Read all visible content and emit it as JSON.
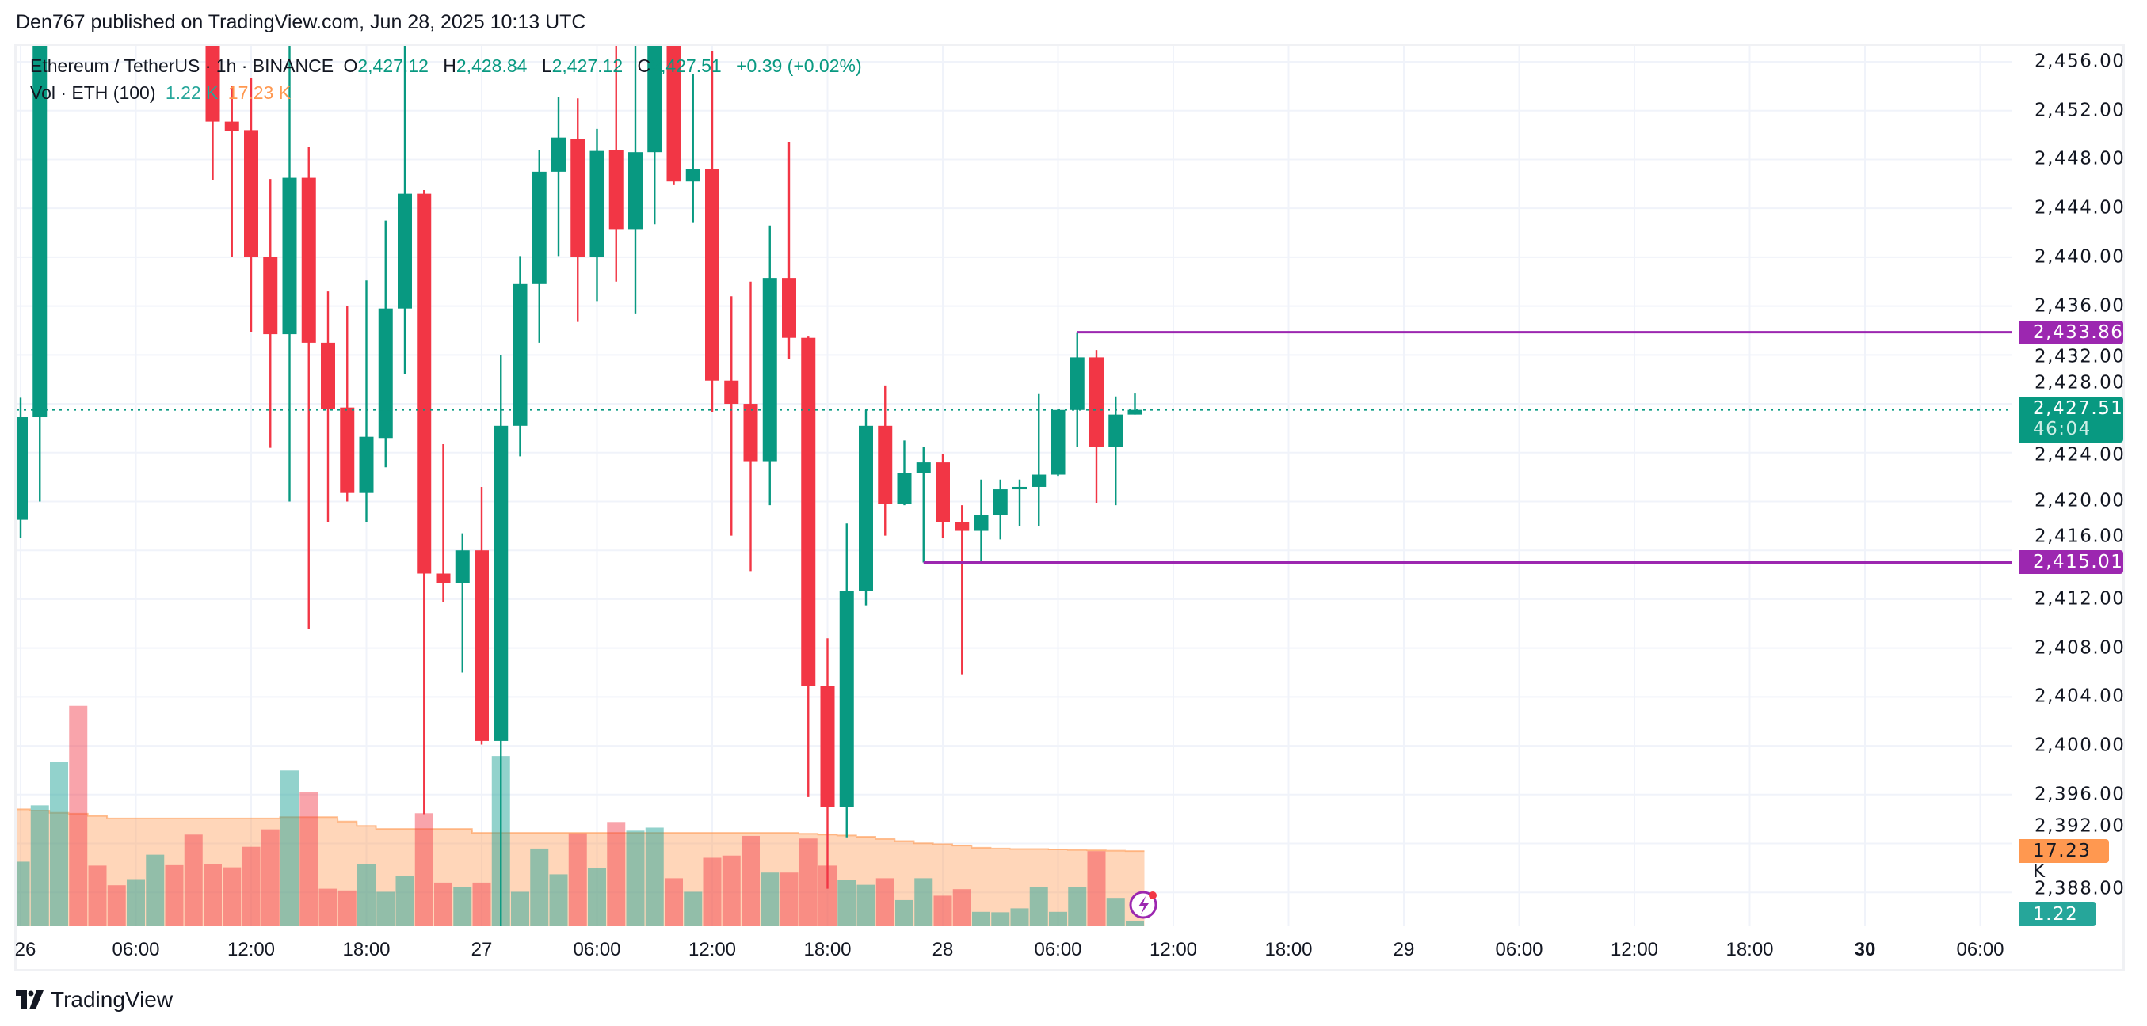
{
  "published": "Den767 published on TradingView.com, Jun 28, 2025 10:13 UTC",
  "legend": {
    "symbol": "Ethereum / TetherUS · 1h · BINANCE",
    "o_label": "O",
    "o": "2,427.12",
    "h_label": "H",
    "h": "2,428.84",
    "l_label": "L",
    "l": "2,427.12",
    "c_label": "C",
    "c": "2,427.51",
    "change": "+0.39 (+0.02%)",
    "vol_title": "Vol · ETH (100)",
    "vol_value": "1.22 K",
    "vol_ma": "17.23 K"
  },
  "tags": {
    "resistance": "2,433.86",
    "last_price": "2,427.51",
    "countdown": "46:04",
    "support": "2,415.01",
    "vol_ma": "17.23 K",
    "vol": "1.22 K"
  },
  "footer": {
    "brand": "TradingView"
  },
  "colors": {
    "up": "#089981",
    "down": "#f23645",
    "line": "#9c27b0",
    "ma": "#ff9850",
    "vol_tag": "#26a69a"
  },
  "chart_data": {
    "type": "candlestick",
    "interval": "1h",
    "first_candle": "Jun 26 00:00",
    "y_ticks": [
      "2,456.00",
      "2,452.00",
      "2,448.00",
      "2,444.00",
      "2,440.00",
      "2,436.00",
      "2,432.00",
      "2,428.00",
      "2,424.00",
      "2,420.00",
      "2,416.00",
      "2,412.00",
      "2,408.00",
      "2,404.00",
      "2,400.00",
      "2,396.00",
      "2,392.00",
      "2,388.00"
    ],
    "y_tick_values": [
      2456,
      2452,
      2448,
      2444,
      2440,
      2436,
      2432,
      2428,
      2424,
      2420,
      2416,
      2412,
      2408,
      2404,
      2400,
      2396,
      2392,
      2388
    ],
    "ylim": [
      2385,
      2459.5
    ],
    "x_ticks": [
      "26",
      "06:00",
      "12:00",
      "18:00",
      "27",
      "06:00",
      "12:00",
      "18:00",
      "28",
      "06:00",
      "12:00",
      "18:00",
      "29",
      "06:00",
      "12:00",
      "18:00",
      "30",
      "06:00"
    ],
    "x_tick_bold": [
      false,
      false,
      false,
      false,
      false,
      false,
      false,
      false,
      false,
      false,
      false,
      false,
      false,
      false,
      false,
      false,
      true,
      false
    ],
    "grid": true,
    "ohlc": [
      [
        2418.5,
        2428.5,
        2417.0,
        2426.9
      ],
      [
        2426.9,
        2462,
        2420.0,
        2460
      ],
      null,
      null,
      null,
      null,
      null,
      null,
      null,
      null,
      [
        2460,
        2461,
        2446.3,
        2451.1
      ],
      [
        2451.1,
        2454.0,
        2440.0,
        2450.3
      ],
      [
        2450.4,
        2454.7,
        2433.9,
        2440.0
      ],
      [
        2440.0,
        2446.4,
        2424.4,
        2433.7
      ],
      [
        2433.7,
        2460,
        2420.0,
        2446.5
      ],
      [
        2446.5,
        2449.0,
        2409.6,
        2433.0
      ],
      [
        2433.0,
        2437.2,
        2418.3,
        2427.6
      ],
      [
        2427.7,
        2436.0,
        2420.0,
        2420.7
      ],
      [
        2420.7,
        2438.1,
        2418.3,
        2425.3
      ],
      [
        2425.2,
        2443.0,
        2422.8,
        2435.8
      ],
      [
        2435.8,
        2457.3,
        2430.4,
        2445.2
      ],
      [
        2445.2,
        2445.5,
        2394.4,
        2414.1
      ],
      [
        2414.1,
        2424.7,
        2411.8,
        2413.3
      ],
      [
        2413.3,
        2417.4,
        2406.0,
        2416.0
      ],
      [
        2416.0,
        2421.2,
        2400.1,
        2400.4
      ],
      [
        2400.4,
        2432.0,
        2385.0,
        2426.2
      ],
      [
        2426.2,
        2440.1,
        2423.7,
        2437.8
      ],
      [
        2437.8,
        2448.8,
        2433.0,
        2447.0
      ],
      [
        2447.0,
        2453.1,
        2440.1,
        2449.8
      ],
      [
        2449.7,
        2453.0,
        2434.7,
        2440.0
      ],
      [
        2440.0,
        2450.5,
        2436.4,
        2448.7
      ],
      [
        2448.8,
        2460,
        2438.0,
        2442.3
      ],
      [
        2442.3,
        2460,
        2435.4,
        2448.6
      ],
      [
        2448.6,
        2462,
        2442.7,
        2460
      ],
      [
        2460,
        2462,
        2445.9,
        2446.2
      ],
      [
        2446.2,
        2455.0,
        2442.8,
        2447.2
      ],
      [
        2447.2,
        2456.9,
        2427.3,
        2429.9
      ],
      [
        2429.9,
        2436.8,
        2417.2,
        2428.0
      ],
      [
        2428.0,
        2438.0,
        2414.3,
        2423.3
      ],
      [
        2423.3,
        2442.6,
        2419.7,
        2438.3
      ],
      [
        2438.3,
        2449.4,
        2431.7,
        2433.4
      ],
      [
        2433.4,
        2433.5,
        2395.8,
        2404.9
      ],
      [
        2404.9,
        2408.8,
        2388.3,
        2395.0
      ],
      [
        2395.0,
        2418.2,
        2392.5,
        2412.7
      ],
      [
        2412.7,
        2427.5,
        2411.5,
        2426.2
      ],
      [
        2426.2,
        2429.5,
        2417.2,
        2419.8
      ],
      [
        2419.8,
        2425.0,
        2419.7,
        2422.3
      ],
      [
        2422.3,
        2424.5,
        2415.01,
        2423.2
      ],
      [
        2423.2,
        2423.9,
        2417.0,
        2418.3
      ],
      [
        2418.3,
        2419.7,
        2405.8,
        2417.6
      ],
      [
        2417.6,
        2421.8,
        2415.0,
        2418.9
      ],
      [
        2418.9,
        2421.8,
        2416.9,
        2421.0
      ],
      [
        2421.0,
        2421.8,
        2418.0,
        2421.2
      ],
      [
        2421.2,
        2428.8,
        2418.0,
        2422.2
      ],
      [
        2422.2,
        2427.6,
        2422.1,
        2427.5
      ],
      [
        2427.5,
        2433.86,
        2424.5,
        2431.8
      ],
      [
        2431.8,
        2432.4,
        2419.9,
        2424.5
      ],
      [
        2424.5,
        2428.6,
        2419.7,
        2427.12
      ],
      [
        2427.12,
        2428.84,
        2427.12,
        2427.51
      ]
    ],
    "direction": [
      "up",
      "up",
      "up",
      "down",
      "down",
      "down",
      "up",
      "up",
      "down",
      "down",
      "down",
      "down",
      "down",
      "down",
      "up",
      "down",
      "down",
      "down",
      "up",
      "up",
      "up",
      "down",
      "down",
      "up",
      "down",
      "up",
      "up",
      "up",
      "up",
      "down",
      "up",
      "down",
      "up",
      "up",
      "down",
      "up",
      "down",
      "down",
      "down",
      "up",
      "down",
      "down",
      "down",
      "up",
      "up",
      "down",
      "up",
      "up",
      "down",
      "down",
      "up",
      "up",
      "up",
      "up",
      "up",
      "up",
      "down",
      "up",
      "up"
    ],
    "volume_k": [
      14.8,
      27.7,
      37.6,
      50.5,
      13.9,
      9.4,
      10.8,
      16.4,
      14.0,
      21.0,
      14.3,
      13.5,
      18.2,
      22.2,
      35.7,
      30.8,
      8.6,
      8.2,
      14.3,
      7.9,
      11.5,
      25.9,
      10.0,
      9.0,
      10.0,
      39.0,
      7.9,
      17.8,
      11.9,
      21.3,
      13.3,
      23.9,
      21.9,
      22.6,
      11.0,
      7.9,
      15.7,
      16.2,
      20.7,
      12.3,
      12.3,
      20.1,
      13.9,
      10.6,
      9.5,
      11.0,
      6.0,
      11.0,
      7.0,
      8.5,
      3.3,
      3.2,
      4.1,
      8.9,
      3.3,
      8.9,
      17.2,
      6.5,
      1.22
    ],
    "volume_ma_k": [
      26.8,
      26.5,
      26.0,
      25.8,
      25.3,
      24.7,
      24.7,
      24.7,
      24.7,
      24.7,
      24.7,
      24.7,
      24.7,
      24.7,
      25.0,
      25.0,
      25.0,
      24.0,
      23.0,
      22.3,
      22.3,
      22.3,
      22.3,
      22.3,
      21.4,
      21.4,
      21.4,
      21.4,
      21.4,
      21.4,
      21.4,
      21.4,
      21.4,
      21.4,
      21.4,
      21.4,
      21.4,
      21.4,
      21.4,
      21.4,
      21.4,
      21.2,
      21.0,
      20.8,
      20.5,
      20.0,
      19.5,
      19.0,
      18.8,
      18.5,
      18.0,
      17.8,
      17.7,
      17.7,
      17.6,
      17.5,
      17.4,
      17.3,
      17.23
    ],
    "horizontal_lines": [
      {
        "price": 2433.86,
        "from_candle": 55
      },
      {
        "price": 2415.01,
        "from_candle": 47
      }
    ],
    "last_price": 2427.51
  }
}
